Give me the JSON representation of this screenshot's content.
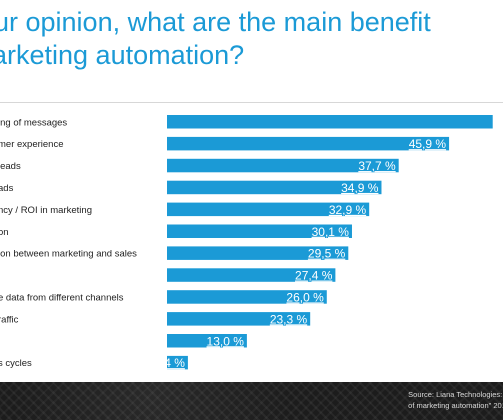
{
  "title": {
    "line1": "ur opinion, what are the main benefit",
    "line2": "arketing automation?"
  },
  "chart_data": {
    "type": "bar",
    "orientation": "horizontal",
    "categories": [
      "ing of messages",
      "mer experience",
      "leads",
      "ads",
      "ncy / ROI in marketing",
      "on",
      "ion between marketing and sales",
      "",
      "e data from different channels",
      "raffic",
      "",
      "s cycles"
    ],
    "values": [
      53.0,
      45.9,
      37.7,
      34.9,
      32.9,
      30.1,
      29.5,
      27.4,
      26.0,
      23.3,
      13.0,
      3.4
    ],
    "labels": [
      "",
      "45,9 %",
      "37,7 %",
      "34,9 %",
      "32,9 %",
      "30,1 %",
      "29,5 %",
      "27,4 %",
      "26,0 %",
      "23,3 %",
      "13,0 %",
      "3,4 %"
    ],
    "bar_color": "#1b9ad6",
    "label_color": "#ffffff",
    "xlim": [
      0,
      55
    ]
  },
  "footer": {
    "source_line1": "Source: Liana Technologies: \"",
    "source_line2": "of marketing automation\" 201"
  }
}
